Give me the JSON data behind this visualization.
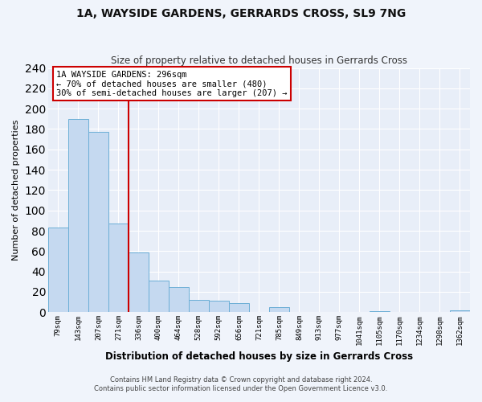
{
  "title": "1A, WAYSIDE GARDENS, GERRARDS CROSS, SL9 7NG",
  "subtitle": "Size of property relative to detached houses in Gerrards Cross",
  "xlabel": "Distribution of detached houses by size in Gerrards Cross",
  "ylabel": "Number of detached properties",
  "bar_labels": [
    "79sqm",
    "143sqm",
    "207sqm",
    "271sqm",
    "336sqm",
    "400sqm",
    "464sqm",
    "528sqm",
    "592sqm",
    "656sqm",
    "721sqm",
    "785sqm",
    "849sqm",
    "913sqm",
    "977sqm",
    "1041sqm",
    "1105sqm",
    "1170sqm",
    "1234sqm",
    "1298sqm",
    "1362sqm"
  ],
  "bar_values": [
    83,
    190,
    177,
    87,
    59,
    31,
    25,
    12,
    11,
    9,
    0,
    5,
    0,
    0,
    0,
    0,
    1,
    0,
    0,
    0,
    2
  ],
  "bar_color": "#c5d9f0",
  "bar_edge_color": "#6baed6",
  "background_color": "#f0f4fb",
  "plot_bg_color": "#e8eef8",
  "grid_color": "#ffffff",
  "vline_x_index": 3.5,
  "vline_color": "#cc0000",
  "annotation_title": "1A WAYSIDE GARDENS: 296sqm",
  "annotation_line1": "← 70% of detached houses are smaller (480)",
  "annotation_line2": "30% of semi-detached houses are larger (207) →",
  "annotation_box_color": "#ffffff",
  "annotation_box_edge": "#cc0000",
  "ylim": [
    0,
    240
  ],
  "yticks": [
    0,
    20,
    40,
    60,
    80,
    100,
    120,
    140,
    160,
    180,
    200,
    220,
    240
  ],
  "footer1": "Contains HM Land Registry data © Crown copyright and database right 2024.",
  "footer2": "Contains public sector information licensed under the Open Government Licence v3.0."
}
